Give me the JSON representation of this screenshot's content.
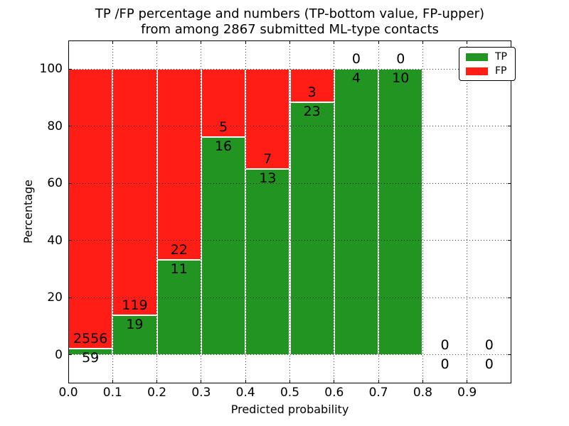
{
  "figure": {
    "title_line1": "TP /FP percentage and numbers (TP-bottom value, FP-upper)",
    "title_line2": "from among 2867 submitted ML-type contacts"
  },
  "chart_data": {
    "type": "bar",
    "stacked": true,
    "title": "TP /FP percentage and numbers (TP-bottom value, FP-upper) from among 2867 submitted ML-type contacts",
    "xlabel": "Predicted probability",
    "ylabel": "Percentage",
    "xlim": [
      0.0,
      1.0
    ],
    "ylim": [
      -10,
      110
    ],
    "x_ticks": [
      0.0,
      0.1,
      0.2,
      0.3,
      0.4,
      0.5,
      0.6,
      0.7,
      0.8,
      0.9
    ],
    "x_tick_labels": [
      "0.0",
      "0.1",
      "0.2",
      "0.3",
      "0.4",
      "0.5",
      "0.6",
      "0.7",
      "0.8",
      "0.9"
    ],
    "y_ticks": [
      0,
      20,
      40,
      60,
      80,
      100
    ],
    "y_tick_labels": [
      "0",
      "20",
      "40",
      "60",
      "80",
      "100"
    ],
    "grid": true,
    "grid_style": "dotted",
    "total_contacts": 2867,
    "bins": [
      {
        "range": [
          0.0,
          0.1
        ],
        "tp": 59,
        "fp": 2556,
        "tp_percent": 2.26
      },
      {
        "range": [
          0.1,
          0.2
        ],
        "tp": 19,
        "fp": 119,
        "tp_percent": 13.77
      },
      {
        "range": [
          0.2,
          0.3
        ],
        "tp": 11,
        "fp": 22,
        "tp_percent": 33.33
      },
      {
        "range": [
          0.3,
          0.4
        ],
        "tp": 16,
        "fp": 5,
        "tp_percent": 76.19
      },
      {
        "range": [
          0.4,
          0.5
        ],
        "tp": 13,
        "fp": 7,
        "tp_percent": 65.0
      },
      {
        "range": [
          0.5,
          0.6
        ],
        "tp": 23,
        "fp": 3,
        "tp_percent": 88.46
      },
      {
        "range": [
          0.6,
          0.7
        ],
        "tp": 4,
        "fp": 0,
        "tp_percent": 100.0
      },
      {
        "range": [
          0.7,
          0.8
        ],
        "tp": 10,
        "fp": 0,
        "tp_percent": 100.0
      },
      {
        "range": [
          0.8,
          0.9
        ],
        "tp": 0,
        "fp": 0,
        "tp_percent": 0
      },
      {
        "range": [
          0.9,
          1.0
        ],
        "tp": 0,
        "fp": 0,
        "tp_percent": 0
      }
    ],
    "legend": {
      "position": "upper right",
      "entries": [
        {
          "label": "TP",
          "color": "#219421"
        },
        {
          "label": "FP",
          "color": "#ff1d16"
        }
      ]
    }
  }
}
